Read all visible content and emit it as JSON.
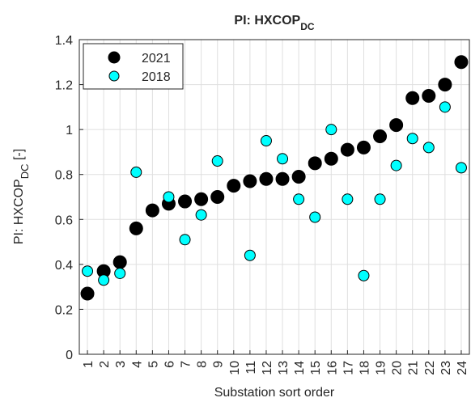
{
  "chart_data": {
    "type": "scatter",
    "title": "PI: HXCOP",
    "title_subscript": "DC",
    "ylabel": [
      "PI: HXCOP",
      "DC",
      " [-]"
    ],
    "xlabel": "Substation sort order",
    "x": [
      1,
      2,
      3,
      4,
      5,
      6,
      7,
      8,
      9,
      10,
      11,
      12,
      13,
      14,
      15,
      16,
      17,
      18,
      19,
      20,
      21,
      22,
      23,
      24
    ],
    "xlim": [
      0.5,
      24.5
    ],
    "xticks": [
      1,
      2,
      3,
      4,
      5,
      6,
      7,
      8,
      9,
      10,
      11,
      12,
      13,
      14,
      15,
      16,
      17,
      18,
      19,
      20,
      21,
      22,
      23,
      24
    ],
    "ylim": [
      0,
      1.4
    ],
    "yticks": [
      0,
      0.2,
      0.4,
      0.6,
      0.8,
      1,
      1.2,
      1.4
    ],
    "grid": true,
    "legend": "top-left",
    "series": [
      {
        "name": "2021",
        "color": "#000000",
        "values": [
          0.27,
          0.37,
          0.41,
          0.56,
          0.64,
          0.67,
          0.68,
          0.69,
          0.7,
          0.75,
          0.77,
          0.78,
          0.78,
          0.79,
          0.85,
          0.87,
          0.91,
          0.92,
          0.97,
          1.02,
          1.14,
          1.15,
          1.2,
          1.3
        ]
      },
      {
        "name": "2018",
        "color": "#00ffff",
        "values": [
          0.37,
          0.33,
          0.36,
          0.81,
          null,
          0.7,
          0.51,
          0.62,
          0.86,
          null,
          0.44,
          0.95,
          0.87,
          0.69,
          0.61,
          1.0,
          0.69,
          0.35,
          0.69,
          0.84,
          0.96,
          0.92,
          1.1,
          0.83
        ]
      }
    ]
  }
}
